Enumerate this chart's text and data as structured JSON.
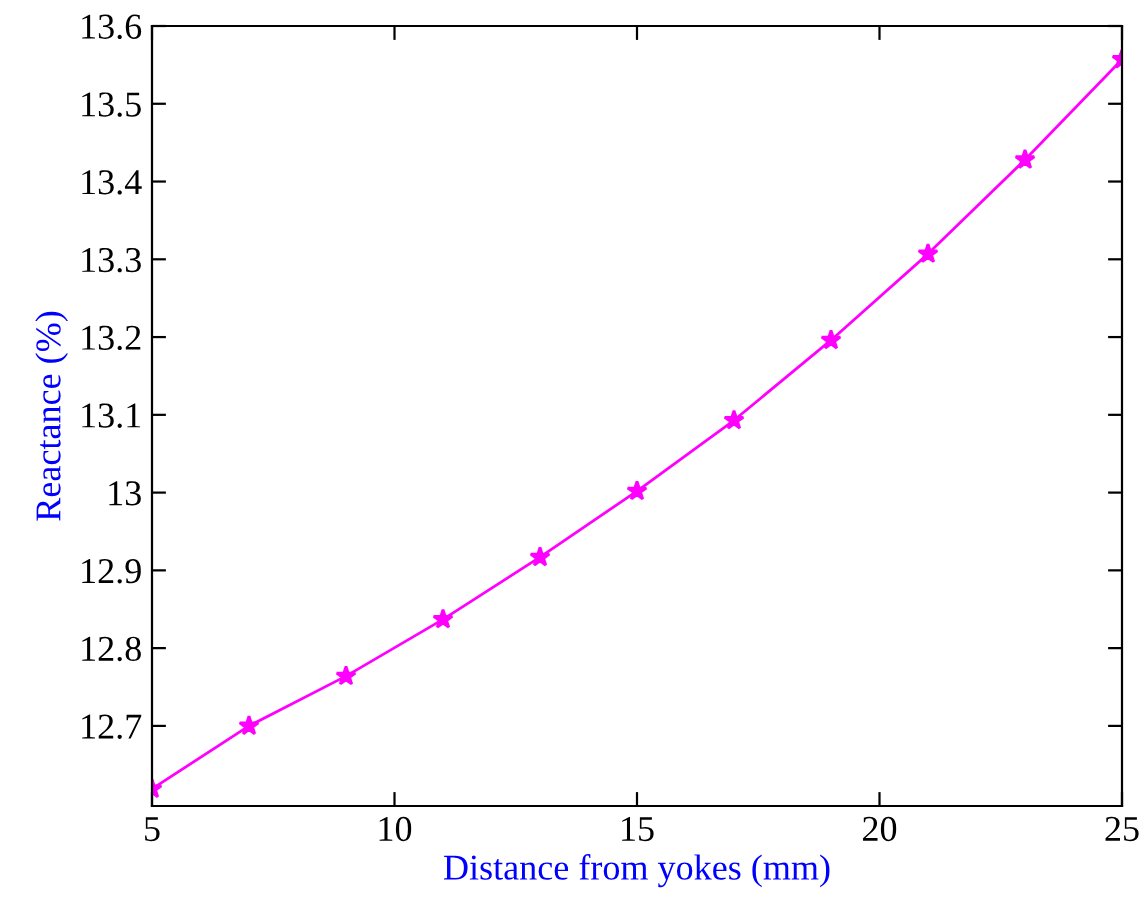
{
  "chart_data": {
    "type": "line",
    "xlabel": "Distance from yokes (mm)",
    "ylabel": "Reactance (%)",
    "x": [
      5,
      7,
      9,
      11,
      13,
      15,
      17,
      19,
      21,
      23,
      25
    ],
    "series": [
      {
        "color": "#ff00ff",
        "values": [
          12.619,
          12.7,
          12.764,
          12.837,
          12.917,
          13.002,
          13.093,
          13.196,
          13.307,
          13.428,
          13.557
        ]
      }
    ],
    "marker": "star",
    "line_style": "solid",
    "xlim": [
      5,
      25
    ],
    "xticks": [
      5,
      10,
      15,
      20,
      25
    ],
    "ylim": [
      12.597,
      13.6
    ],
    "yticks": [
      12.7,
      12.8,
      12.9,
      13,
      13.1,
      13.2,
      13.3,
      13.4,
      13.5,
      13.6
    ],
    "grid": false
  }
}
